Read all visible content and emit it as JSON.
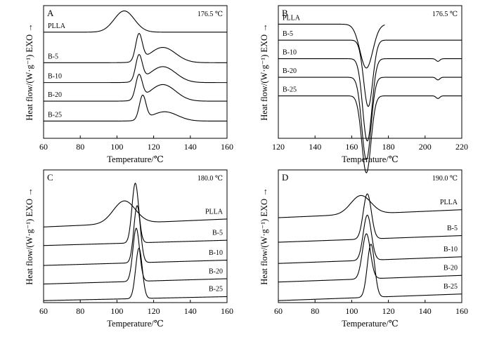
{
  "chart_data": [
    {
      "type": "line",
      "panel": "A",
      "note": "176.5 ℃",
      "xlabel": "Temperature/℃",
      "ylabel": "Heat flow/(W·g⁻¹) EXO →",
      "xlim": [
        60,
        160
      ],
      "xticks": [
        60,
        80,
        100,
        120,
        140,
        160
      ],
      "label_side": "left",
      "series": [
        {
          "name": "PLLA",
          "baseline": 0.8,
          "tilt": 0.0,
          "peaks": [
            {
              "center": 104,
              "width": 5.5,
              "height": 0.16
            }
          ],
          "ends": [
            60,
            160
          ]
        },
        {
          "name": "B-5",
          "baseline": 0.57,
          "tilt": 0.0,
          "peaks": [
            {
              "center": 112,
              "width": 1.8,
              "height": 0.2
            },
            {
              "center": 125,
              "width": 7,
              "height": 0.115
            }
          ],
          "ends": [
            60,
            160
          ]
        },
        {
          "name": "B-10",
          "baseline": 0.42,
          "tilt": 0.0,
          "peaks": [
            {
              "center": 112,
              "width": 1.8,
              "height": 0.19
            },
            {
              "center": 125,
              "width": 7,
              "height": 0.12
            }
          ],
          "ends": [
            60,
            160
          ]
        },
        {
          "name": "B-20",
          "baseline": 0.28,
          "tilt": 0.0,
          "peaks": [
            {
              "center": 112,
              "width": 1.8,
              "height": 0.18
            },
            {
              "center": 125,
              "width": 7,
              "height": 0.125
            }
          ],
          "ends": [
            60,
            160
          ]
        },
        {
          "name": "B-25",
          "baseline": 0.13,
          "tilt": 0.0,
          "peaks": [
            {
              "center": 114,
              "width": 1.8,
              "height": 0.18
            },
            {
              "center": 126,
              "width": 7,
              "height": 0.07
            }
          ],
          "ends": [
            60,
            160
          ]
        }
      ]
    },
    {
      "type": "line",
      "panel": "B",
      "note": "176.5 ℃",
      "xlabel": "Temperature/℃",
      "ylabel": "Heat flow/(W·g⁻¹) EXO →",
      "xlim": [
        120,
        220
      ],
      "xticks": [
        120,
        140,
        160,
        180,
        200,
        220
      ],
      "label_side": "left",
      "series": [
        {
          "name": "PLLA",
          "baseline": 0.86,
          "tilt": 0.0,
          "peaks": [
            {
              "center": 168,
              "width": 3.5,
              "height": -0.33
            }
          ],
          "ends": [
            120,
            178
          ]
        },
        {
          "name": "B-5",
          "baseline": 0.74,
          "tilt": 0.0,
          "peaks": [
            {
              "center": 169,
              "width": 2.5,
              "height": -0.5
            }
          ],
          "ends": [
            120,
            220
          ]
        },
        {
          "name": "B-10",
          "baseline": 0.6,
          "tilt": 0.0,
          "peaks": [
            {
              "center": 168.5,
              "width": 2.5,
              "height": -0.62
            },
            {
              "center": 207,
              "width": 1,
              "height": -0.02
            }
          ],
          "ends": [
            120,
            220
          ]
        },
        {
          "name": "B-20",
          "baseline": 0.46,
          "tilt": 0.0,
          "peaks": [
            {
              "center": 168,
              "width": 2.5,
              "height": -0.62
            },
            {
              "center": 207,
              "width": 1,
              "height": -0.02
            }
          ],
          "ends": [
            120,
            220
          ]
        },
        {
          "name": "B-25",
          "baseline": 0.32,
          "tilt": 0.0,
          "peaks": [
            {
              "center": 168,
              "width": 2.5,
              "height": -0.58
            },
            {
              "center": 207,
              "width": 1,
              "height": -0.02
            }
          ],
          "ends": [
            120,
            220
          ]
        }
      ]
    },
    {
      "type": "line",
      "panel": "C",
      "note": "180.0 ℃",
      "xlabel": "Temperature/℃",
      "ylabel": "Heat flow/(W·g⁻¹) EXO →",
      "xlim": [
        60,
        160
      ],
      "xticks": [
        60,
        80,
        100,
        120,
        140,
        160
      ],
      "label_side": "right",
      "series": [
        {
          "name": "PLLA",
          "baseline": 0.6,
          "tilt": 0.06,
          "peaks": [
            {
              "center": 104,
              "width": 6,
              "height": 0.17
            }
          ],
          "ends": [
            60,
            160
          ]
        },
        {
          "name": "B-5",
          "baseline": 0.45,
          "tilt": 0.04,
          "peaks": [
            {
              "center": 110,
              "width": 1.8,
              "height": 0.45
            }
          ],
          "ends": [
            60,
            160
          ]
        },
        {
          "name": "B-10",
          "baseline": 0.3,
          "tilt": 0.04,
          "peaks": [
            {
              "center": 111,
              "width": 1.8,
              "height": 0.43
            }
          ],
          "ends": [
            60,
            160
          ]
        },
        {
          "name": "B-20",
          "baseline": 0.16,
          "tilt": 0.04,
          "peaks": [
            {
              "center": 110.5,
              "width": 1.8,
              "height": 0.4
            }
          ],
          "ends": [
            60,
            160
          ]
        },
        {
          "name": "B-25",
          "baseline": 0.03,
          "tilt": 0.03,
          "peaks": [
            {
              "center": 112,
              "width": 1.8,
              "height": 0.38
            }
          ],
          "ends": [
            60,
            160
          ]
        }
      ]
    },
    {
      "type": "line",
      "panel": "D",
      "note": "190.0 ℃",
      "xlabel": "Temperature/℃",
      "ylabel": "Heat flow/(W·g⁻¹) EXO →",
      "xlim": [
        60,
        160
      ],
      "xticks": [
        60,
        80,
        100,
        120,
        140,
        160
      ],
      "label_side": "right",
      "series": [
        {
          "name": "PLLA",
          "baseline": 0.67,
          "tilt": 0.06,
          "peaks": [
            {
              "center": 105,
              "width": 5.5,
              "height": 0.14
            }
          ],
          "ends": [
            60,
            160
          ]
        },
        {
          "name": "B-5",
          "baseline": 0.48,
          "tilt": 0.05,
          "peaks": [
            {
              "center": 108.5,
              "width": 2.2,
              "height": 0.34
            }
          ],
          "ends": [
            60,
            160
          ]
        },
        {
          "name": "B-10",
          "baseline": 0.32,
          "tilt": 0.05,
          "peaks": [
            {
              "center": 108.5,
              "width": 2.2,
              "height": 0.34
            }
          ],
          "ends": [
            60,
            160
          ]
        },
        {
          "name": "B-20",
          "baseline": 0.18,
          "tilt": 0.05,
          "peaks": [
            {
              "center": 108,
              "width": 2.2,
              "height": 0.34
            }
          ],
          "ends": [
            60,
            160
          ]
        },
        {
          "name": "B-25",
          "baseline": 0.04,
          "tilt": 0.05,
          "peaks": [
            {
              "center": 110.5,
              "width": 2.0,
              "height": 0.4
            }
          ],
          "ends": [
            60,
            160
          ]
        }
      ]
    }
  ]
}
